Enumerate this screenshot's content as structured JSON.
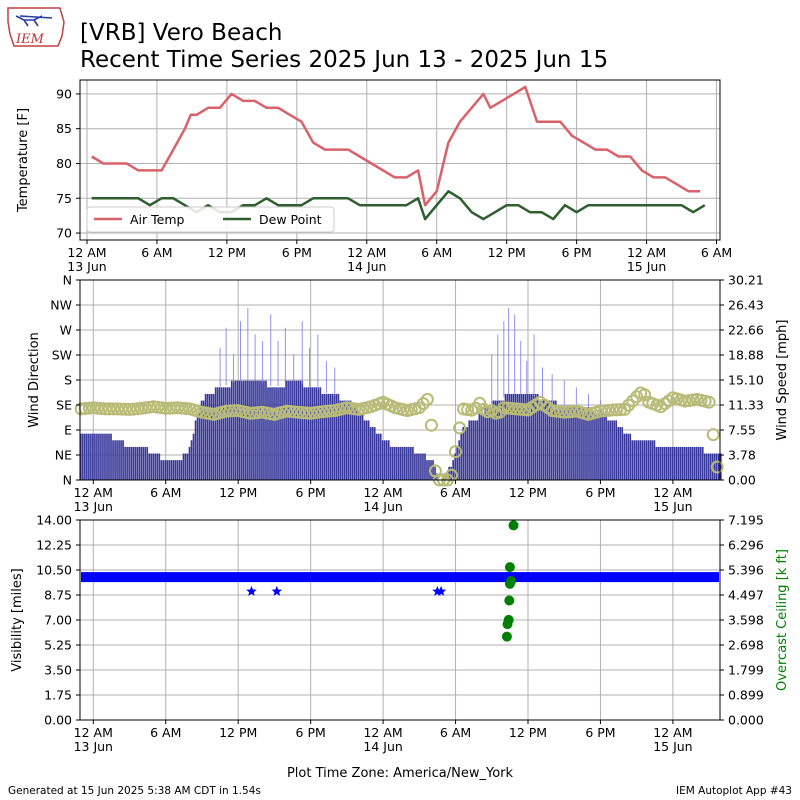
{
  "header": {
    "title_line1": "[VRB] Vero Beach",
    "title_line2": "Recent Time Series 2025 Jun 13 - 2025 Jun 15",
    "logo_text": "IEM"
  },
  "footer": {
    "generated": "Generated at 15 Jun 2025 5:38 AM CDT in 1.54s",
    "app": "IEM Autoplot App #43",
    "timezone_label": "Plot Time Zone: America/New_York"
  },
  "colors": {
    "air_temp": "#d9616a",
    "dew_point": "#2f5e2f",
    "wind_speed": "#37379a",
    "wind_gust": "#7777ee",
    "wind_dir": "#b9bb78",
    "visibility": "#0000ff",
    "ceiling": "#008000",
    "grid": "#b0b0b0"
  },
  "chart_data": [
    {
      "type": "line",
      "name": "temperature",
      "x_unit": "hours since 2025-06-13 00:00 America/New_York",
      "xlim": [
        -0.6,
        54.3
      ],
      "ylabel": "Temperature [F]",
      "ylim": [
        69,
        92
      ],
      "yticks": [
        "70",
        "75",
        "80",
        "85",
        "90"
      ],
      "grid": true,
      "legend_position": "lower-left",
      "series": [
        {
          "name": "Air Temp",
          "points": [
            [
              0.4,
              81
            ],
            [
              1.4,
              80
            ],
            [
              2.4,
              80
            ],
            [
              3.4,
              80
            ],
            [
              4.4,
              79
            ],
            [
              5.4,
              79
            ],
            [
              6.4,
              79
            ],
            [
              7.4,
              82
            ],
            [
              8.4,
              85
            ],
            [
              8.9,
              87
            ],
            [
              9.4,
              87
            ],
            [
              10.4,
              88
            ],
            [
              11.4,
              88
            ],
            [
              12.4,
              90
            ],
            [
              13.4,
              89
            ],
            [
              14.4,
              89
            ],
            [
              15.4,
              88
            ],
            [
              16.4,
              88
            ],
            [
              17.4,
              87
            ],
            [
              18.4,
              86
            ],
            [
              19.4,
              83
            ],
            [
              20.4,
              82
            ],
            [
              21.4,
              82
            ],
            [
              22.4,
              82
            ],
            [
              23.4,
              81
            ],
            [
              24.4,
              80
            ],
            [
              25.4,
              79
            ],
            [
              26.4,
              78
            ],
            [
              27.4,
              78
            ],
            [
              28.4,
              79
            ],
            [
              29.0,
              74
            ],
            [
              30.0,
              76
            ],
            [
              31.0,
              83
            ],
            [
              32.0,
              86
            ],
            [
              33.0,
              88
            ],
            [
              34.0,
              90
            ],
            [
              34.6,
              88
            ],
            [
              35.6,
              89
            ],
            [
              36.6,
              90
            ],
            [
              37.6,
              91
            ],
            [
              38.6,
              86
            ],
            [
              39.6,
              86
            ],
            [
              40.6,
              86
            ],
            [
              41.6,
              84
            ],
            [
              42.6,
              83
            ],
            [
              43.6,
              82
            ],
            [
              44.6,
              82
            ],
            [
              45.6,
              81
            ],
            [
              46.6,
              81
            ],
            [
              47.6,
              79
            ],
            [
              48.6,
              78
            ],
            [
              49.6,
              78
            ],
            [
              50.6,
              77
            ],
            [
              51.6,
              76
            ],
            [
              52.6,
              76
            ]
          ]
        },
        {
          "name": "Dew Point",
          "points": [
            [
              0.4,
              75
            ],
            [
              1.4,
              75
            ],
            [
              2.4,
              75
            ],
            [
              3.4,
              75
            ],
            [
              4.4,
              75
            ],
            [
              5.4,
              74
            ],
            [
              6.4,
              75
            ],
            [
              7.4,
              75
            ],
            [
              8.4,
              74
            ],
            [
              9.4,
              73
            ],
            [
              10.4,
              74
            ],
            [
              11.4,
              73
            ],
            [
              12.4,
              73
            ],
            [
              13.4,
              74
            ],
            [
              14.4,
              74
            ],
            [
              15.4,
              75
            ],
            [
              16.4,
              74
            ],
            [
              17.4,
              74
            ],
            [
              18.4,
              74
            ],
            [
              19.4,
              75
            ],
            [
              20.4,
              75
            ],
            [
              21.4,
              75
            ],
            [
              22.4,
              75
            ],
            [
              23.4,
              74
            ],
            [
              24.4,
              74
            ],
            [
              25.4,
              74
            ],
            [
              26.4,
              74
            ],
            [
              27.4,
              74
            ],
            [
              28.4,
              75
            ],
            [
              29.0,
              72
            ],
            [
              30.0,
              74
            ],
            [
              31.0,
              76
            ],
            [
              32.0,
              75
            ],
            [
              33.0,
              73
            ],
            [
              34.0,
              72
            ],
            [
              35.0,
              73
            ],
            [
              36.0,
              74
            ],
            [
              37.0,
              74
            ],
            [
              38.0,
              73
            ],
            [
              39.0,
              73
            ],
            [
              40.0,
              72
            ],
            [
              41.0,
              74
            ],
            [
              42.0,
              73
            ],
            [
              43.0,
              74
            ],
            [
              44.0,
              74
            ],
            [
              45.0,
              74
            ],
            [
              46.0,
              74
            ],
            [
              47.0,
              74
            ],
            [
              48.0,
              74
            ],
            [
              49.0,
              74
            ],
            [
              50.0,
              74
            ],
            [
              51.0,
              74
            ],
            [
              52.0,
              73
            ],
            [
              53.0,
              74
            ]
          ]
        }
      ]
    },
    {
      "type": "bar",
      "name": "wind",
      "x_unit": "hours since 2025-06-13 00:00 America/New_York",
      "xlim": [
        -1.1,
        51.9
      ],
      "ylabel": "Wind Direction",
      "ylim": [
        0,
        360
      ],
      "yticks": [
        "N",
        "NE",
        "E",
        "SE",
        "S",
        "SW",
        "W",
        "NW",
        "N"
      ],
      "y2label": "Wind Speed [mph]",
      "y2lim": [
        0,
        30.21
      ],
      "y2ticks": [
        "0.00",
        "3.78",
        "7.55",
        "11.33",
        "15.10",
        "18.88",
        "22.66",
        "26.43",
        "30.21"
      ],
      "grid": true,
      "speed_mph": [
        [
          -1,
          7
        ],
        [
          1,
          7
        ],
        [
          2,
          6
        ],
        [
          3,
          5
        ],
        [
          4,
          5
        ],
        [
          5,
          4
        ],
        [
          6,
          3
        ],
        [
          7,
          3
        ],
        [
          8,
          5
        ],
        [
          8.8,
          12
        ],
        [
          9.5,
          13
        ],
        [
          10.5,
          14
        ],
        [
          12,
          15
        ],
        [
          13.5,
          15
        ],
        [
          15,
          14
        ],
        [
          16.5,
          15
        ],
        [
          18,
          14
        ],
        [
          19.5,
          13
        ],
        [
          21,
          12
        ],
        [
          22,
          10
        ],
        [
          23,
          8
        ],
        [
          24,
          6
        ],
        [
          25,
          5
        ],
        [
          26,
          5
        ],
        [
          27,
          4
        ],
        [
          28,
          3
        ],
        [
          28.6,
          0
        ],
        [
          29.6,
          2
        ],
        [
          30.6,
          8
        ],
        [
          31.5,
          9
        ],
        [
          32.5,
          11
        ],
        [
          33.5,
          12
        ],
        [
          34.5,
          13
        ],
        [
          36,
          13
        ],
        [
          37.5,
          12
        ],
        [
          39,
          11
        ],
        [
          40.5,
          11
        ],
        [
          42,
          10
        ],
        [
          43,
          9
        ],
        [
          44,
          7
        ],
        [
          45,
          6
        ],
        [
          46,
          6
        ],
        [
          47,
          5
        ],
        [
          48,
          5
        ],
        [
          49,
          5
        ],
        [
          50,
          5
        ],
        [
          51,
          4
        ],
        [
          51.8,
          4
        ]
      ],
      "gust_mph": [
        [
          10.5,
          20
        ],
        [
          11.0,
          23
        ],
        [
          11.6,
          19
        ],
        [
          12.2,
          24
        ],
        [
          12.8,
          26
        ],
        [
          13.4,
          22
        ],
        [
          14.0,
          21
        ],
        [
          14.7,
          25
        ],
        [
          15.3,
          21
        ],
        [
          15.9,
          23
        ],
        [
          16.6,
          19
        ],
        [
          17.3,
          24
        ],
        [
          17.9,
          20
        ],
        [
          18.6,
          22
        ],
        [
          19.3,
          18
        ],
        [
          20.0,
          17
        ],
        [
          33.0,
          19
        ],
        [
          33.5,
          22
        ],
        [
          34.0,
          24
        ],
        [
          34.4,
          26
        ],
        [
          34.9,
          25
        ],
        [
          35.4,
          21
        ],
        [
          35.9,
          18
        ],
        [
          36.5,
          22
        ],
        [
          37.2,
          17
        ],
        [
          38.0,
          16
        ],
        [
          39.0,
          15
        ],
        [
          40.0,
          14
        ],
        [
          41.0,
          13
        ],
        [
          42.0,
          12
        ]
      ],
      "direction_deg": [
        [
          -1,
          128
        ],
        [
          0,
          130
        ],
        [
          1,
          128
        ],
        [
          2,
          128
        ],
        [
          3,
          127
        ],
        [
          4,
          129
        ],
        [
          5,
          132
        ],
        [
          6,
          129
        ],
        [
          7,
          130
        ],
        [
          8,
          128
        ],
        [
          9,
          122
        ],
        [
          10,
          118
        ],
        [
          11,
          124
        ],
        [
          12,
          125
        ],
        [
          13,
          120
        ],
        [
          14,
          122
        ],
        [
          15,
          118
        ],
        [
          16,
          124
        ],
        [
          17,
          122
        ],
        [
          18,
          120
        ],
        [
          19,
          123
        ],
        [
          20,
          125
        ],
        [
          21,
          130
        ],
        [
          22,
          127
        ],
        [
          23,
          132
        ],
        [
          24,
          140
        ],
        [
          25,
          130
        ],
        [
          26,
          125
        ],
        [
          27,
          130
        ],
        [
          27.8,
          148
        ],
        [
          28.4,
          0
        ],
        [
          29.6,
          0
        ],
        [
          30.6,
          128
        ],
        [
          31.5,
          125
        ],
        [
          32.0,
          138
        ],
        [
          32.5,
          122
        ],
        [
          33.0,
          125
        ],
        [
          33.5,
          118
        ],
        [
          34.0,
          130
        ],
        [
          35.0,
          128
        ],
        [
          36.0,
          126
        ],
        [
          37.0,
          140
        ],
        [
          38.0,
          125
        ],
        [
          39.0,
          122
        ],
        [
          40.0,
          124
        ],
        [
          41.0,
          118
        ],
        [
          42.0,
          124
        ],
        [
          43.0,
          126
        ],
        [
          44.0,
          127
        ],
        [
          45.0,
          150
        ],
        [
          45.5,
          160
        ],
        [
          46.0,
          140
        ],
        [
          47.0,
          132
        ],
        [
          48.0,
          148
        ],
        [
          49.0,
          142
        ],
        [
          50.0,
          145
        ],
        [
          51.0,
          140
        ],
        [
          51.8,
          0
        ]
      ]
    },
    {
      "type": "scatter",
      "name": "visibility",
      "x_unit": "hours since 2025-06-13 00:00 America/New_York",
      "xlim": [
        -1.1,
        51.9
      ],
      "ylabel": "Visibility [miles]",
      "ylim": [
        0,
        14
      ],
      "yticks": [
        "0.00",
        "1.75",
        "3.50",
        "5.25",
        "7.00",
        "8.75",
        "10.50",
        "12.25",
        "14.00"
      ],
      "y2label": "Overcast Ceiling [k ft]",
      "y2lim": [
        0,
        7.195
      ],
      "y2ticks": [
        "0.000",
        "0.899",
        "1.799",
        "2.698",
        "3.598",
        "4.497",
        "5.396",
        "6.296",
        "7.195"
      ],
      "grid": true,
      "visibility_band_miles": 10,
      "visibility_points": [
        [
          13.1,
          9.0
        ],
        [
          15.2,
          9.0
        ],
        [
          28.5,
          9.0
        ],
        [
          28.8,
          9.0
        ]
      ],
      "ceiling_kft": [
        [
          34.25,
          3.0
        ],
        [
          34.3,
          3.45
        ],
        [
          34.4,
          3.6
        ],
        [
          34.45,
          4.3
        ],
        [
          34.5,
          4.9
        ],
        [
          34.6,
          5.0
        ],
        [
          34.5,
          5.5
        ],
        [
          34.8,
          7.0
        ]
      ]
    }
  ],
  "x_axis": {
    "tick_labels": [
      {
        "hour": 0,
        "label": "12 AM",
        "sub": "13 Jun"
      },
      {
        "hour": 6,
        "label": "6 AM",
        "sub": ""
      },
      {
        "hour": 12,
        "label": "12 PM",
        "sub": ""
      },
      {
        "hour": 18,
        "label": "6 PM",
        "sub": ""
      },
      {
        "hour": 24,
        "label": "12 AM",
        "sub": "14 Jun"
      },
      {
        "hour": 30,
        "label": "6 AM",
        "sub": ""
      },
      {
        "hour": 36,
        "label": "12 PM",
        "sub": ""
      },
      {
        "hour": 42,
        "label": "6 PM",
        "sub": ""
      },
      {
        "hour": 48,
        "label": "12 AM",
        "sub": "15 Jun"
      },
      {
        "hour": 54,
        "label": "6 AM",
        "sub": ""
      }
    ]
  },
  "legend": [
    {
      "label": "Air Temp"
    },
    {
      "label": "Dew Point"
    }
  ]
}
